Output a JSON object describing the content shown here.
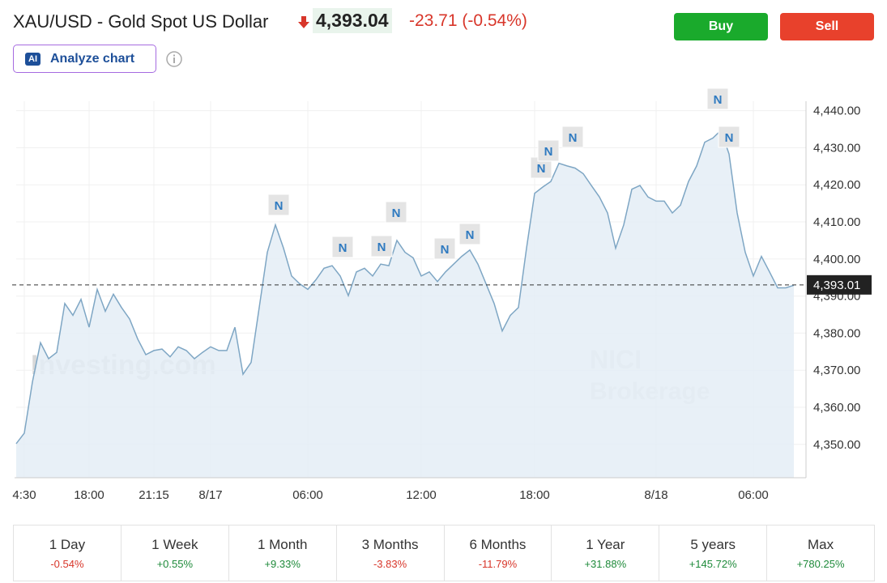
{
  "header": {
    "title": "XAU/USD - Gold Spot US Dollar",
    "price": "4,393.04",
    "change": "-23.71 (-0.54%)",
    "ai_badge": "AI",
    "analyze": "Analyze chart"
  },
  "buttons": {
    "buy": "Buy",
    "sell": "Sell"
  },
  "chart_data": {
    "type": "line",
    "color": "#7ea6c4",
    "area_color": "#e4edf6",
    "categories": [
      null,
      "4:30",
      null,
      null,
      null,
      null,
      null,
      null,
      null,
      "18:00",
      null,
      null,
      null,
      null,
      null,
      null,
      null,
      "21:15",
      null,
      null,
      null,
      null,
      null,
      null,
      "8/17",
      null,
      null,
      null,
      null,
      null,
      null,
      null,
      null,
      null,
      null,
      null,
      "06:00",
      null,
      null,
      null,
      null,
      null,
      null,
      null,
      null,
      null,
      null,
      null,
      null,
      null,
      "12:00",
      null,
      null,
      null,
      null,
      null,
      null,
      null,
      null,
      null,
      null,
      null,
      null,
      null,
      "18:00",
      null,
      null,
      null,
      null,
      null,
      null,
      null,
      null,
      null,
      null,
      null,
      null,
      null,
      null,
      "8/18",
      null,
      null,
      null,
      null,
      null,
      null,
      null,
      null,
      null,
      null,
      null,
      "06:00",
      null,
      null,
      null,
      null,
      null
    ],
    "values": [
      4350.2,
      4353.0,
      4366.8,
      4377.4,
      4373.1,
      4374.8,
      4388.0,
      4384.8,
      4389.1,
      4381.6,
      4391.8,
      4385.9,
      4390.5,
      4386.9,
      4383.8,
      4378.4,
      4374.2,
      4375.3,
      4375.7,
      4373.6,
      4376.3,
      4375.3,
      4373.1,
      4374.8,
      4376.3,
      4375.3,
      4375.3,
      4381.6,
      4368.9,
      4372.1,
      4386.9,
      4401.8,
      4409.2,
      4402.9,
      4395.4,
      4393.3,
      4391.8,
      4394.4,
      4397.5,
      4398.2,
      4395.4,
      4390.1,
      4396.5,
      4397.5,
      4395.4,
      4398.6,
      4398.2,
      4405.0,
      4401.8,
      4400.3,
      4395.4,
      4396.5,
      4393.9,
      4396.5,
      4398.6,
      4400.7,
      4402.4,
      4398.6,
      4393.3,
      4388.0,
      4380.6,
      4384.8,
      4386.9,
      4402.9,
      4417.7,
      4419.4,
      4420.9,
      4425.8,
      4425.1,
      4424.5,
      4423.0,
      4419.8,
      4416.7,
      4412.4,
      4402.9,
      4409.2,
      4418.8,
      4419.8,
      4416.7,
      4415.6,
      4415.6,
      4412.4,
      4414.5,
      4420.9,
      4425.1,
      4431.5,
      4432.6,
      4434.7,
      4428.3,
      4412.4,
      4401.8,
      4395.4,
      4400.7,
      4396.5,
      4392.2,
      4392.2,
      4392.9
    ],
    "ylim": [
      4341,
      4448
    ],
    "yticks": [
      {
        "value": 4350,
        "label": "4,350.00"
      },
      {
        "value": 4360,
        "label": "4,360.00"
      },
      {
        "value": 4370,
        "label": "4,370.00"
      },
      {
        "value": 4380,
        "label": "4,380.00"
      },
      {
        "value": 4390,
        "label": "4,390.00"
      },
      {
        "value": 4400,
        "label": "4,400.00"
      },
      {
        "value": 4410,
        "label": "4,410.00"
      },
      {
        "value": 4420,
        "label": "4,420.00"
      },
      {
        "value": 4430,
        "label": "4,430.00"
      },
      {
        "value": 4440,
        "label": "4,440.00"
      }
    ],
    "reference_line": {
      "value": 4393.01,
      "label": "4,393.01"
    },
    "annotations": [
      "N",
      "N",
      "N",
      "N",
      "N",
      "N",
      "N",
      "N",
      "N",
      "N",
      "N"
    ],
    "watermark": "Investing.com",
    "broker_watermark": [
      "NICI",
      "Brokerage"
    ],
    "grid": true
  },
  "periods": [
    {
      "name": "1 Day",
      "change": "-0.54%"
    },
    {
      "name": "1 Week",
      "change": "+0.55%"
    },
    {
      "name": "1 Month",
      "change": "+9.33%"
    },
    {
      "name": "3 Months",
      "change": "-3.83%"
    },
    {
      "name": "6 Months",
      "change": "-11.79%"
    },
    {
      "name": "1 Year",
      "change": "+31.88%"
    },
    {
      "name": "5 years",
      "change": "+145.72%"
    },
    {
      "name": "Max",
      "change": "+780.25%"
    }
  ]
}
